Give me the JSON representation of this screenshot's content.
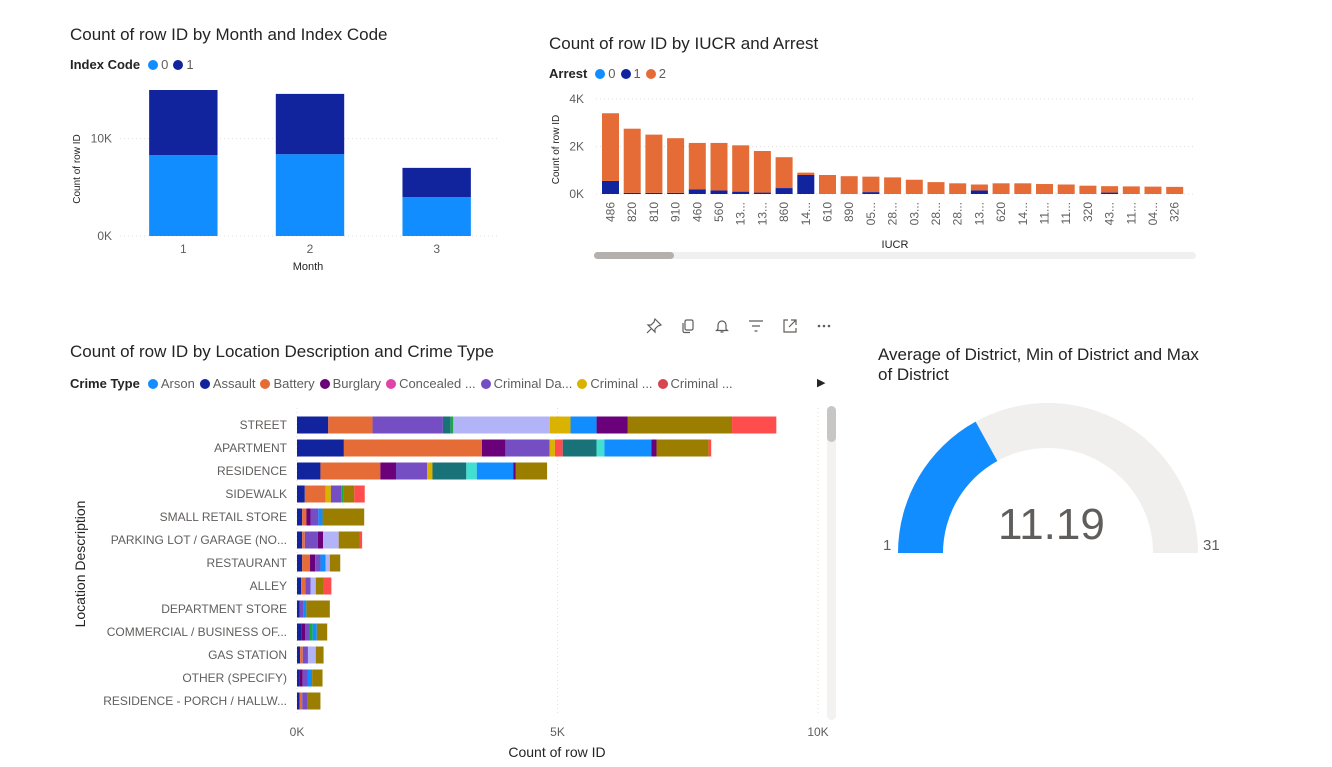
{
  "month_chart": {
    "title": "Count of row ID by Month and Index Code",
    "legend_title": "Index Code",
    "chart_data": {
      "type": "bar",
      "stacked": true,
      "categories": [
        "1",
        "2",
        "3"
      ],
      "series": [
        {
          "name": "0",
          "color": "#118DFF",
          "values": [
            8300,
            8400,
            4000
          ]
        },
        {
          "name": "1",
          "color": "#12239E",
          "values": [
            6700,
            6200,
            3000
          ]
        }
      ],
      "xlabel": "Month",
      "ylabel": "Count of row ID",
      "ylim": [
        0,
        15000
      ],
      "yticks": [
        {
          "v": 0,
          "label": "0K"
        },
        {
          "v": 10000,
          "label": "10K"
        }
      ],
      "grid": true
    }
  },
  "iucr_chart": {
    "title": "Count of row ID by IUCR and Arrest",
    "legend_title": "Arrest",
    "chart_data": {
      "type": "bar",
      "stacked": true,
      "categories": [
        "486",
        "820",
        "810",
        "910",
        "460",
        "560",
        "13...",
        "13...",
        "860",
        "14...",
        "610",
        "890",
        "05...",
        "28...",
        "03...",
        "28...",
        "28...",
        "13...",
        "620",
        "14...",
        "11...",
        "11...",
        "320",
        "43...",
        "11...",
        "04...",
        "326"
      ],
      "series": [
        {
          "name": "0",
          "color": "#118DFF",
          "values": [
            0,
            0,
            0,
            0,
            0,
            0,
            0,
            0,
            0,
            0,
            0,
            0,
            0,
            0,
            0,
            0,
            0,
            0,
            0,
            0,
            0,
            0,
            0,
            0,
            0,
            0,
            0
          ]
        },
        {
          "name": "1",
          "color": "#12239E",
          "values": [
            550,
            50,
            50,
            50,
            200,
            150,
            100,
            60,
            250,
            800,
            0,
            0,
            80,
            0,
            0,
            0,
            0,
            150,
            0,
            0,
            0,
            0,
            0,
            60,
            0,
            0,
            0
          ]
        },
        {
          "name": "2",
          "color": "#E66C37",
          "values": [
            2850,
            2700,
            2450,
            2300,
            1950,
            2000,
            1950,
            1750,
            1300,
            100,
            800,
            750,
            650,
            700,
            600,
            500,
            450,
            250,
            450,
            450,
            420,
            400,
            350,
            270,
            320,
            310,
            300
          ]
        }
      ],
      "xlabel": "IUCR",
      "ylabel": "Count of row ID",
      "ylim": [
        0,
        4000
      ],
      "yticks": [
        {
          "v": 0,
          "label": "0K"
        },
        {
          "v": 2000,
          "label": "2K"
        },
        {
          "v": 4000,
          "label": "4K"
        }
      ],
      "grid": true
    }
  },
  "toolbar": {
    "icons": [
      "pin-icon",
      "copy-icon",
      "bell-icon",
      "filter-icon",
      "focus-mode-icon",
      "more-options-icon"
    ]
  },
  "location_chart": {
    "title": "Count of row ID by Location Description and Crime Type",
    "legend_title": "Crime Type",
    "legend_items": [
      {
        "name": "Arson",
        "color": "#118DFF"
      },
      {
        "name": "Assault",
        "color": "#12239E"
      },
      {
        "name": "Battery",
        "color": "#E66C37"
      },
      {
        "name": "Burglary",
        "color": "#6B007B"
      },
      {
        "name": "Concealed ...",
        "color": "#E044A7"
      },
      {
        "name": "Criminal Da...",
        "color": "#744EC2"
      },
      {
        "name": "Criminal ...",
        "color": "#D9B300"
      },
      {
        "name": "Criminal ...",
        "color": "#D64550"
      }
    ],
    "chart_data": {
      "type": "bar",
      "orientation": "horizontal",
      "stacked": true,
      "categories": [
        "STREET",
        "APARTMENT",
        "RESIDENCE",
        "SIDEWALK",
        "SMALL RETAIL STORE",
        "PARKING LOT / GARAGE (NO...",
        "RESTAURANT",
        "ALLEY",
        "DEPARTMENT STORE",
        "COMMERCIAL / BUSINESS OF...",
        "GAS STATION",
        "OTHER (SPECIFY)",
        "RESIDENCE - PORCH / HALLW..."
      ],
      "segments": [
        [
          [
            "#12239E",
            600
          ],
          [
            "#E66C37",
            850
          ],
          [
            "#744EC2",
            1350
          ],
          [
            "#197278",
            150
          ],
          [
            "#1AAB40",
            50
          ],
          [
            "#B3B3F7",
            1850
          ],
          [
            "#D9B300",
            400
          ],
          [
            "#118DFF",
            500
          ],
          [
            "#6B007B",
            600
          ],
          [
            "#9B7E00",
            2000
          ],
          [
            "#FF4C4C",
            850
          ]
        ],
        [
          [
            "#12239E",
            900
          ],
          [
            "#E66C37",
            2650
          ],
          [
            "#6B007B",
            450
          ],
          [
            "#744EC2",
            850
          ],
          [
            "#D9B300",
            100
          ],
          [
            "#FF4C4C",
            150
          ],
          [
            "#197278",
            650
          ],
          [
            "#41E0D0",
            150
          ],
          [
            "#118DFF",
            900
          ],
          [
            "#6B007B",
            100
          ],
          [
            "#9B7E00",
            1000
          ],
          [
            "#FF4C4C",
            50
          ]
        ],
        [
          [
            "#12239E",
            450
          ],
          [
            "#E66C37",
            1150
          ],
          [
            "#6B007B",
            300
          ],
          [
            "#744EC2",
            600
          ],
          [
            "#D9B300",
            100
          ],
          [
            "#197278",
            650
          ],
          [
            "#41E0D0",
            200
          ],
          [
            "#118DFF",
            700
          ],
          [
            "#6B007B",
            50
          ],
          [
            "#9B7E00",
            600
          ]
        ],
        [
          [
            "#12239E",
            150
          ],
          [
            "#E66C37",
            400
          ],
          [
            "#D9B300",
            100
          ],
          [
            "#744EC2",
            200
          ],
          [
            "#1AAB40",
            50
          ],
          [
            "#9B7E00",
            200
          ],
          [
            "#FF4C4C",
            200
          ]
        ],
        [
          [
            "#12239E",
            100
          ],
          [
            "#E66C37",
            80
          ],
          [
            "#6B007B",
            80
          ],
          [
            "#744EC2",
            150
          ],
          [
            "#118DFF",
            80
          ],
          [
            "#9B7E00",
            800
          ]
        ],
        [
          [
            "#12239E",
            100
          ],
          [
            "#E66C37",
            50
          ],
          [
            "#744EC2",
            250
          ],
          [
            "#6B007B",
            100
          ],
          [
            "#B3B3F7",
            300
          ],
          [
            "#9B7E00",
            400
          ],
          [
            "#FF4C4C",
            50
          ]
        ],
        [
          [
            "#12239E",
            100
          ],
          [
            "#E66C37",
            150
          ],
          [
            "#6B007B",
            100
          ],
          [
            "#744EC2",
            100
          ],
          [
            "#118DFF",
            100
          ],
          [
            "#B3B3F7",
            80
          ],
          [
            "#9B7E00",
            200
          ]
        ],
        [
          [
            "#12239E",
            80
          ],
          [
            "#E66C37",
            80
          ],
          [
            "#744EC2",
            100
          ],
          [
            "#B3B3F7",
            100
          ],
          [
            "#9B7E00",
            150
          ],
          [
            "#FF4C4C",
            150
          ]
        ],
        [
          [
            "#12239E",
            50
          ],
          [
            "#744EC2",
            80
          ],
          [
            "#118DFF",
            50
          ],
          [
            "#9B7E00",
            450
          ]
        ],
        [
          [
            "#12239E",
            80
          ],
          [
            "#6B007B",
            80
          ],
          [
            "#744EC2",
            80
          ],
          [
            "#1AAB40",
            60
          ],
          [
            "#118DFF",
            80
          ],
          [
            "#9B7E00",
            200
          ]
        ],
        [
          [
            "#12239E",
            60
          ],
          [
            "#E66C37",
            50
          ],
          [
            "#744EC2",
            100
          ],
          [
            "#B3B3F7",
            150
          ],
          [
            "#9B7E00",
            150
          ]
        ],
        [
          [
            "#12239E",
            50
          ],
          [
            "#6B007B",
            60
          ],
          [
            "#744EC2",
            100
          ],
          [
            "#118DFF",
            80
          ],
          [
            "#9B7E00",
            200
          ]
        ],
        [
          [
            "#12239E",
            50
          ],
          [
            "#E66C37",
            50
          ],
          [
            "#744EC2",
            100
          ],
          [
            "#9B7E00",
            250
          ]
        ]
      ],
      "xlabel": "Count of row ID",
      "ylabel": "Location Description",
      "xlim": [
        0,
        10000
      ],
      "xticks": [
        {
          "v": 0,
          "label": "0K"
        },
        {
          "v": 5000,
          "label": "5K"
        },
        {
          "v": 10000,
          "label": "10K"
        }
      ],
      "grid": true
    }
  },
  "gauge": {
    "title_line1": "Average of District, Min of District and Max",
    "title_line2": "of District",
    "value_label": "11.19",
    "min_label": "1",
    "max_label": "31",
    "chart_data": {
      "type": "gauge",
      "value": 11.19,
      "min": 1,
      "max": 31,
      "fill_color": "#118DFF",
      "track_color": "#F0EFEE"
    }
  }
}
